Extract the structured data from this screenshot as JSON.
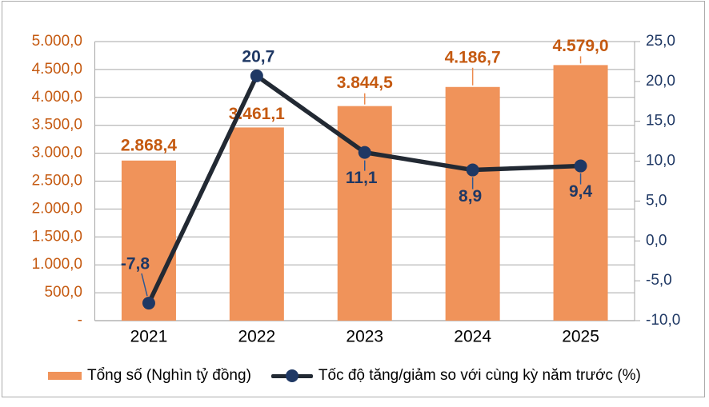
{
  "chart_data": {
    "type": "combo-bar-line",
    "categories": [
      "2021",
      "2022",
      "2023",
      "2024",
      "2025"
    ],
    "series": [
      {
        "name": "Tổng số (Nghìn tỷ đồng)",
        "type": "bar",
        "axis": "left",
        "values": [
          2868.4,
          3461.1,
          3844.5,
          4186.7,
          4579.0
        ],
        "labels": [
          "2.868,4",
          "3.461,1",
          "3.844,5",
          "4.186,7",
          "4.579,0"
        ],
        "color": "#F0935A",
        "label_color": "#C55A11",
        "leader_color": "#ED8B4E"
      },
      {
        "name": "Tốc độ tăng/giảm so với cùng kỳ năm trước (%)",
        "type": "line",
        "axis": "right",
        "values": [
          -7.8,
          20.7,
          11.1,
          8.9,
          9.4
        ],
        "labels": [
          "-7,8",
          "20,7",
          "11,1",
          "8,9",
          "9,4"
        ],
        "line_color": "#222933",
        "marker_color": "#1F3864",
        "label_color": "#1F3864",
        "leader_color": "#2E5994"
      }
    ],
    "left_axis": {
      "min": 0,
      "max": 5000,
      "step": 500,
      "tick_labels": [
        "-",
        "500,0",
        "1.000,0",
        "1.500,0",
        "2.000,0",
        "2.500,0",
        "3.000,0",
        "3.500,0",
        "4.000,0",
        "4.500,0",
        "5.000,0"
      ],
      "color": "#C55A11"
    },
    "right_axis": {
      "min": -10,
      "max": 25,
      "step": 5,
      "tick_labels": [
        "-10,0",
        "-5,0",
        "0,0",
        "5,0",
        "10,0",
        "15,0",
        "20,0",
        "25,0"
      ],
      "color": "#1F3864"
    },
    "grid": true,
    "grid_color": "#A6A6A6",
    "axis_line_color": "#8C8C8C",
    "category_label_color": "#000000",
    "legend_position": "bottom",
    "title": ""
  },
  "legend": {
    "bar_label": "Tổng số (Nghìn tỷ đồng)",
    "line_label": "Tốc độ tăng/giảm so với cùng kỳ năm trước (%)"
  }
}
